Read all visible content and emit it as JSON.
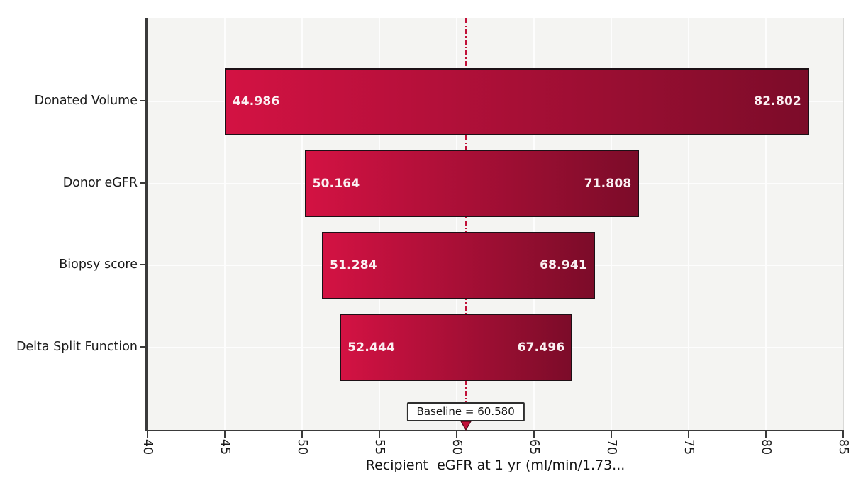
{
  "chart_data": {
    "type": "bar",
    "variant": "tornado",
    "orientation": "horizontal",
    "title": "",
    "xlabel": "Recipient  eGFR at 1 yr (ml/min/1.73...",
    "ylabel": "",
    "xlim": [
      40,
      85
    ],
    "xticks": [
      40,
      45,
      50,
      55,
      60,
      65,
      70,
      75,
      80,
      85
    ],
    "grid": true,
    "categories": [
      "Donated Volume",
      "Donor eGFR",
      "Biopsy score",
      "Delta Split Function"
    ],
    "series": [
      {
        "name": "low",
        "values": [
          44.986,
          50.164,
          51.284,
          52.444
        ]
      },
      {
        "name": "high",
        "values": [
          82.802,
          71.808,
          68.941,
          67.496
        ]
      }
    ],
    "baseline": 60.58,
    "baseline_label": "Baseline = 60.580",
    "colors": {
      "bar_gradient_start": "#d31243",
      "bar_gradient_end": "#7c0c29",
      "bar_border": "#1c1016",
      "bar_value_text": "#fbf1f3",
      "baseline_line": "#c11038",
      "arrow_fill": "#c11038",
      "arrow_stroke": "#4a0716",
      "plot_background": "#f4f4f2",
      "gridline": "#fdfdfd",
      "axis_spine": "#3a3a3a",
      "text": "#1b1b1b"
    }
  }
}
